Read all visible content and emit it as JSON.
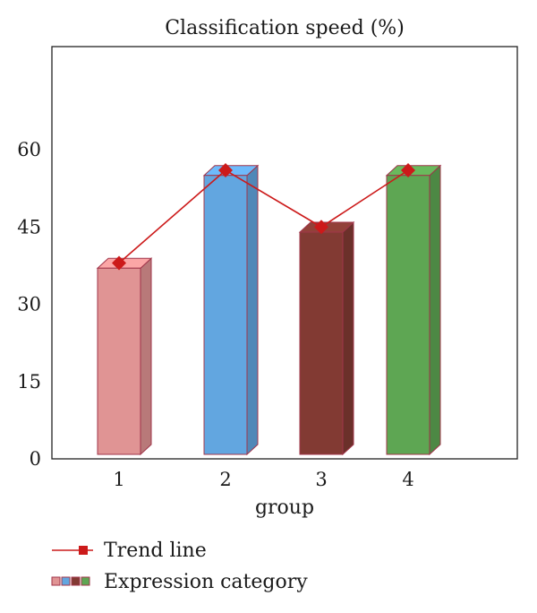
{
  "chart_data": {
    "type": "bar",
    "title": "Classification speed (%)",
    "xlabel": "group",
    "ylabel": "",
    "categories": [
      "1",
      "2",
      "3",
      "4"
    ],
    "ylim": [
      0,
      80
    ],
    "yticks": [
      0,
      15,
      30,
      45,
      60
    ],
    "grid": false,
    "series": [
      {
        "name": "Expression category",
        "values": [
          37,
          55,
          44,
          55
        ]
      }
    ],
    "trend": {
      "name": "Trend line",
      "values": [
        38,
        56,
        45,
        56
      ],
      "color": "#cc1a1a",
      "marker": "diamond"
    },
    "colors": {
      "bars": [
        "#e09494",
        "#62a6e0",
        "#823a33",
        "#5ea653"
      ],
      "bar_edge": "#a0354a",
      "trend": "#cc1a1a"
    },
    "legend": {
      "position": "bottom-left",
      "items": [
        "Trend line",
        "Expression category"
      ]
    }
  }
}
